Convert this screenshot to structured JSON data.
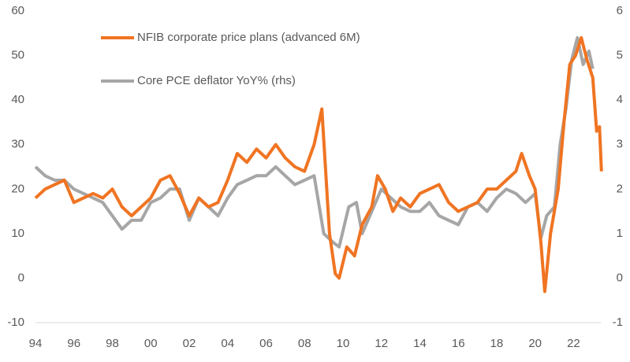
{
  "chart_data": {
    "type": "line",
    "series": [
      {
        "name": "NFIB corporate price plans (advanced 6M)",
        "color": "#f07422",
        "x": [
          1994,
          1994.5,
          1995,
          1995.5,
          1996,
          1996.5,
          1997,
          1997.5,
          1998,
          1998.5,
          1999,
          1999.5,
          2000,
          2000.5,
          2001,
          2001.5,
          2002,
          2002.5,
          2003,
          2003.5,
          2004,
          2004.5,
          2005,
          2005.5,
          2006,
          2006.5,
          2007,
          2007.5,
          2008,
          2008.5,
          2008.9,
          2009.3,
          2009.6,
          2009.8,
          2010.2,
          2010.6,
          2011,
          2011.5,
          2011.8,
          2012.2,
          2012.6,
          2013,
          2013.5,
          2014,
          2014.5,
          2015,
          2015.5,
          2016,
          2016.5,
          2017,
          2017.5,
          2018,
          2018.5,
          2019,
          2019.3,
          2019.7,
          2020,
          2020.3,
          2020.5,
          2020.8,
          2021.2,
          2021.5,
          2021.8,
          2022.1,
          2022.4,
          2022.7,
          2023,
          2023.2,
          2023.35,
          2023.45
        ],
        "values": [
          18,
          20,
          21,
          22,
          17,
          18,
          19,
          18,
          20,
          16,
          14,
          16,
          18,
          22,
          23,
          19,
          14,
          18,
          16,
          17,
          22,
          28,
          26,
          29,
          27,
          30,
          27,
          25,
          24,
          30,
          38,
          10,
          1,
          0,
          7,
          5,
          12,
          16,
          23,
          20,
          15,
          18,
          16,
          19,
          20,
          21,
          17,
          15,
          16,
          17,
          20,
          20,
          22,
          24,
          28,
          23,
          20,
          8,
          -3,
          10,
          20,
          35,
          48,
          50,
          54,
          49,
          45,
          33,
          34,
          24
        ]
      },
      {
        "name": "Core PCE  deflator YoY% (rhs)",
        "color": "#a6a6a6",
        "axis": "y2",
        "x": [
          1994,
          1994.5,
          1995,
          1995.5,
          1996,
          1996.5,
          1997,
          1997.5,
          1998,
          1998.5,
          1999,
          1999.5,
          2000,
          2000.5,
          2001,
          2001.5,
          2002,
          2002.5,
          2003,
          2003.5,
          2004,
          2004.5,
          2005,
          2005.5,
          2006,
          2006.5,
          2007,
          2007.5,
          2008,
          2008.5,
          2009,
          2009.5,
          2009.8,
          2010.3,
          2010.7,
          2011,
          2011.5,
          2012,
          2012.5,
          2013,
          2013.5,
          2014,
          2014.5,
          2015,
          2015.5,
          2016,
          2016.5,
          2017,
          2017.5,
          2018,
          2018.5,
          2019,
          2019.5,
          2020,
          2020.3,
          2020.6,
          2021,
          2021.3,
          2021.6,
          2021.9,
          2022.2,
          2022.5,
          2022.8,
          2023
        ],
        "values": [
          2.5,
          2.3,
          2.2,
          2.2,
          2.0,
          1.9,
          1.8,
          1.7,
          1.4,
          1.1,
          1.3,
          1.3,
          1.7,
          1.8,
          2.0,
          2.0,
          1.3,
          1.8,
          1.6,
          1.4,
          1.8,
          2.1,
          2.2,
          2.3,
          2.3,
          2.5,
          2.3,
          2.1,
          2.2,
          2.3,
          1.0,
          0.8,
          0.7,
          1.6,
          1.7,
          1.0,
          1.5,
          2.0,
          1.8,
          1.6,
          1.5,
          1.5,
          1.7,
          1.4,
          1.3,
          1.2,
          1.6,
          1.7,
          1.5,
          1.8,
          2.0,
          1.9,
          1.7,
          1.9,
          0.9,
          1.4,
          1.6,
          3.0,
          3.8,
          4.9,
          5.4,
          4.8,
          5.1,
          4.7
        ]
      }
    ],
    "xlim": [
      1994,
      2023.5
    ],
    "xticks": [
      {
        "value": 1994,
        "label": "94"
      },
      {
        "value": 1996,
        "label": "96"
      },
      {
        "value": 1998,
        "label": "98"
      },
      {
        "value": 2000,
        "label": "00"
      },
      {
        "value": 2002,
        "label": "02"
      },
      {
        "value": 2004,
        "label": "04"
      },
      {
        "value": 2006,
        "label": "06"
      },
      {
        "value": 2008,
        "label": "08"
      },
      {
        "value": 2010,
        "label": "10"
      },
      {
        "value": 2012,
        "label": "12"
      },
      {
        "value": 2014,
        "label": "14"
      },
      {
        "value": 2016,
        "label": "16"
      },
      {
        "value": 2018,
        "label": "18"
      },
      {
        "value": 2020,
        "label": "20"
      },
      {
        "value": 2022,
        "label": "22"
      }
    ],
    "ylim": [
      -10,
      60
    ],
    "yticks": [
      -10,
      0,
      10,
      20,
      30,
      40,
      50,
      60
    ],
    "y2lim": [
      -1,
      6
    ],
    "y2ticks": [
      -1,
      0,
      1,
      2,
      3,
      4,
      5,
      6
    ],
    "grid": false
  }
}
